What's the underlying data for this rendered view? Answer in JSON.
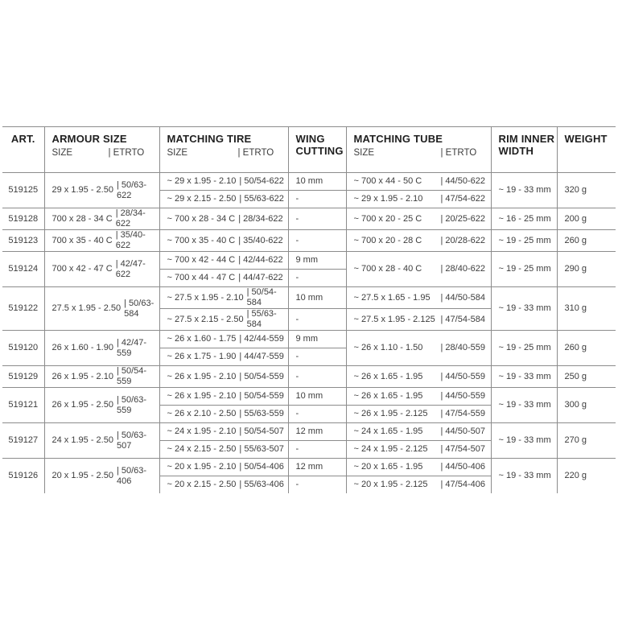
{
  "table": {
    "header": {
      "art": "ART.",
      "armour_title": "ARMOUR SIZE",
      "tire_title": "MATCHING TIRE",
      "wing_line1": "WING",
      "wing_line2": "CUTTING",
      "tube_title": "MATCHING TUBE",
      "rim_line1": "RIM INNER",
      "rim_line2": "WIDTH",
      "weight_title": "WEIGHT",
      "sub_size": "SIZE",
      "sub_etrto": "| ETRTO"
    },
    "colors": {
      "border": "#8c8c8c",
      "header_text": "#1f1f1f",
      "body_text": "#3c3c3c",
      "background": "#ffffff"
    },
    "rows": [
      {
        "art": "519125",
        "armour": {
          "size": "29 x 1.95 - 2.50",
          "etrto": "| 50/63-622"
        },
        "tires": [
          {
            "size": "~ 29 x 1.95 - 2.10",
            "etrto": "| 50/54-622",
            "wing": "10 mm"
          },
          {
            "size": "~ 29 x 2.15 - 2.50",
            "etrto": "| 55/63-622",
            "wing": "-"
          }
        ],
        "tubes": [
          {
            "size": "~ 700 x 44 - 50 C",
            "etrto": "| 44/50-622"
          },
          {
            "size": "~ 29 x 1.95 - 2.10",
            "etrto": "| 47/54-622"
          }
        ],
        "rim": "~ 19 - 33 mm",
        "weight": "320 g"
      },
      {
        "art": "519128",
        "armour": {
          "size": "700 x 28 - 34 C",
          "etrto": "| 28/34-622"
        },
        "tires": [
          {
            "size": "~ 700 x 28 - 34 C",
            "etrto": "| 28/34-622",
            "wing": "-"
          }
        ],
        "tubes": [
          {
            "size": "~ 700 x 20 - 25 C",
            "etrto": "| 20/25-622"
          }
        ],
        "rim": "~ 16 - 25 mm",
        "weight": "200 g"
      },
      {
        "art": "519123",
        "armour": {
          "size": "700 x 35 - 40 C",
          "etrto": "| 35/40-622"
        },
        "tires": [
          {
            "size": "~ 700 x 35 - 40 C",
            "etrto": "| 35/40-622",
            "wing": "-"
          }
        ],
        "tubes": [
          {
            "size": "~ 700 x 20 - 28 C",
            "etrto": "| 20/28-622"
          }
        ],
        "rim": "~ 19 - 25 mm",
        "weight": "260 g"
      },
      {
        "art": "519124",
        "armour": {
          "size": "700 x 42 - 47 C",
          "etrto": "| 42/47-622"
        },
        "tires": [
          {
            "size": "~ 700 x 42 - 44 C",
            "etrto": "| 42/44-622",
            "wing": "9 mm"
          },
          {
            "size": "~ 700 x 44 - 47 C",
            "etrto": "| 44/47-622",
            "wing": "-"
          }
        ],
        "tubes": [
          {
            "size": "~ 700 x 28 - 40 C",
            "etrto": "| 28/40-622"
          }
        ],
        "rim": "~ 19 - 25 mm",
        "weight": "290 g"
      },
      {
        "art": "519122",
        "armour": {
          "size": "27.5 x 1.95 - 2.50",
          "etrto": "| 50/63-584"
        },
        "tires": [
          {
            "size": "~ 27.5 x 1.95 - 2.10",
            "etrto": "| 50/54-584",
            "wing": "10 mm"
          },
          {
            "size": "~ 27.5 x 2.15 - 2.50",
            "etrto": "| 55/63-584",
            "wing": "-"
          }
        ],
        "tubes": [
          {
            "size": "~ 27.5 x 1.65 - 1.95",
            "etrto": "| 44/50-584"
          },
          {
            "size": "~ 27.5 x 1.95 - 2.125",
            "etrto": "| 47/54-584"
          }
        ],
        "rim": "~ 19 - 33 mm",
        "weight": "310 g"
      },
      {
        "art": "519120",
        "armour": {
          "size": "26 x 1.60 - 1.90",
          "etrto": "| 42/47-559"
        },
        "tires": [
          {
            "size": "~ 26 x 1.60 - 1.75",
            "etrto": "| 42/44-559",
            "wing": "9 mm"
          },
          {
            "size": "~ 26 x 1.75 - 1.90",
            "etrto": "| 44/47-559",
            "wing": "-"
          }
        ],
        "tubes": [
          {
            "size": "~ 26 x 1.10 - 1.50",
            "etrto": "| 28/40-559"
          }
        ],
        "rim": "~ 19 - 25 mm",
        "weight": "260 g"
      },
      {
        "art": "519129",
        "armour": {
          "size": "26 x 1.95 - 2.10",
          "etrto": "| 50/54-559"
        },
        "tires": [
          {
            "size": "~ 26 x 1.95 - 2.10",
            "etrto": "| 50/54-559",
            "wing": "-"
          }
        ],
        "tubes": [
          {
            "size": "~ 26 x 1.65 - 1.95",
            "etrto": "| 44/50-559"
          }
        ],
        "rim": "~ 19 - 33 mm",
        "weight": "250 g"
      },
      {
        "art": "519121",
        "armour": {
          "size": "26 x 1.95 - 2.50",
          "etrto": "| 50/63-559"
        },
        "tires": [
          {
            "size": "~ 26 x 1.95 - 2.10",
            "etrto": "| 50/54-559",
            "wing": "10 mm"
          },
          {
            "size": "~ 26 x 2.10 - 2.50",
            "etrto": "| 55/63-559",
            "wing": "-"
          }
        ],
        "tubes": [
          {
            "size": "~ 26 x 1.65 - 1.95",
            "etrto": "| 44/50-559"
          },
          {
            "size": "~ 26 x 1.95 - 2.125",
            "etrto": "| 47/54-559"
          }
        ],
        "rim": "~ 19 - 33 mm",
        "weight": "300 g"
      },
      {
        "art": "519127",
        "armour": {
          "size": "24 x 1.95 - 2.50",
          "etrto": "| 50/63-507"
        },
        "tires": [
          {
            "size": "~ 24 x 1.95 - 2.10",
            "etrto": "| 50/54-507",
            "wing": "12 mm"
          },
          {
            "size": "~ 24 x 2.15 - 2.50",
            "etrto": "| 55/63-507",
            "wing": "-"
          }
        ],
        "tubes": [
          {
            "size": "~ 24 x 1.65 - 1.95",
            "etrto": "| 44/50-507"
          },
          {
            "size": "~ 24 x 1.95 - 2.125",
            "etrto": "| 47/54-507"
          }
        ],
        "rim": "~ 19 - 33 mm",
        "weight": "270 g"
      },
      {
        "art": "519126",
        "armour": {
          "size": "20 x 1.95 - 2.50",
          "etrto": "| 50/63-406"
        },
        "tires": [
          {
            "size": "~ 20 x 1.95 - 2.10",
            "etrto": "| 50/54-406",
            "wing": "12 mm"
          },
          {
            "size": "~ 20 x 2.15 - 2.50",
            "etrto": "| 55/63-406",
            "wing": "-"
          }
        ],
        "tubes": [
          {
            "size": "~ 20 x 1.65 - 1.95",
            "etrto": "| 44/50-406"
          },
          {
            "size": "~ 20 x 1.95 - 2.125",
            "etrto": "| 47/54-406"
          }
        ],
        "rim": "~ 19 - 33 mm",
        "weight": "220 g"
      }
    ]
  }
}
